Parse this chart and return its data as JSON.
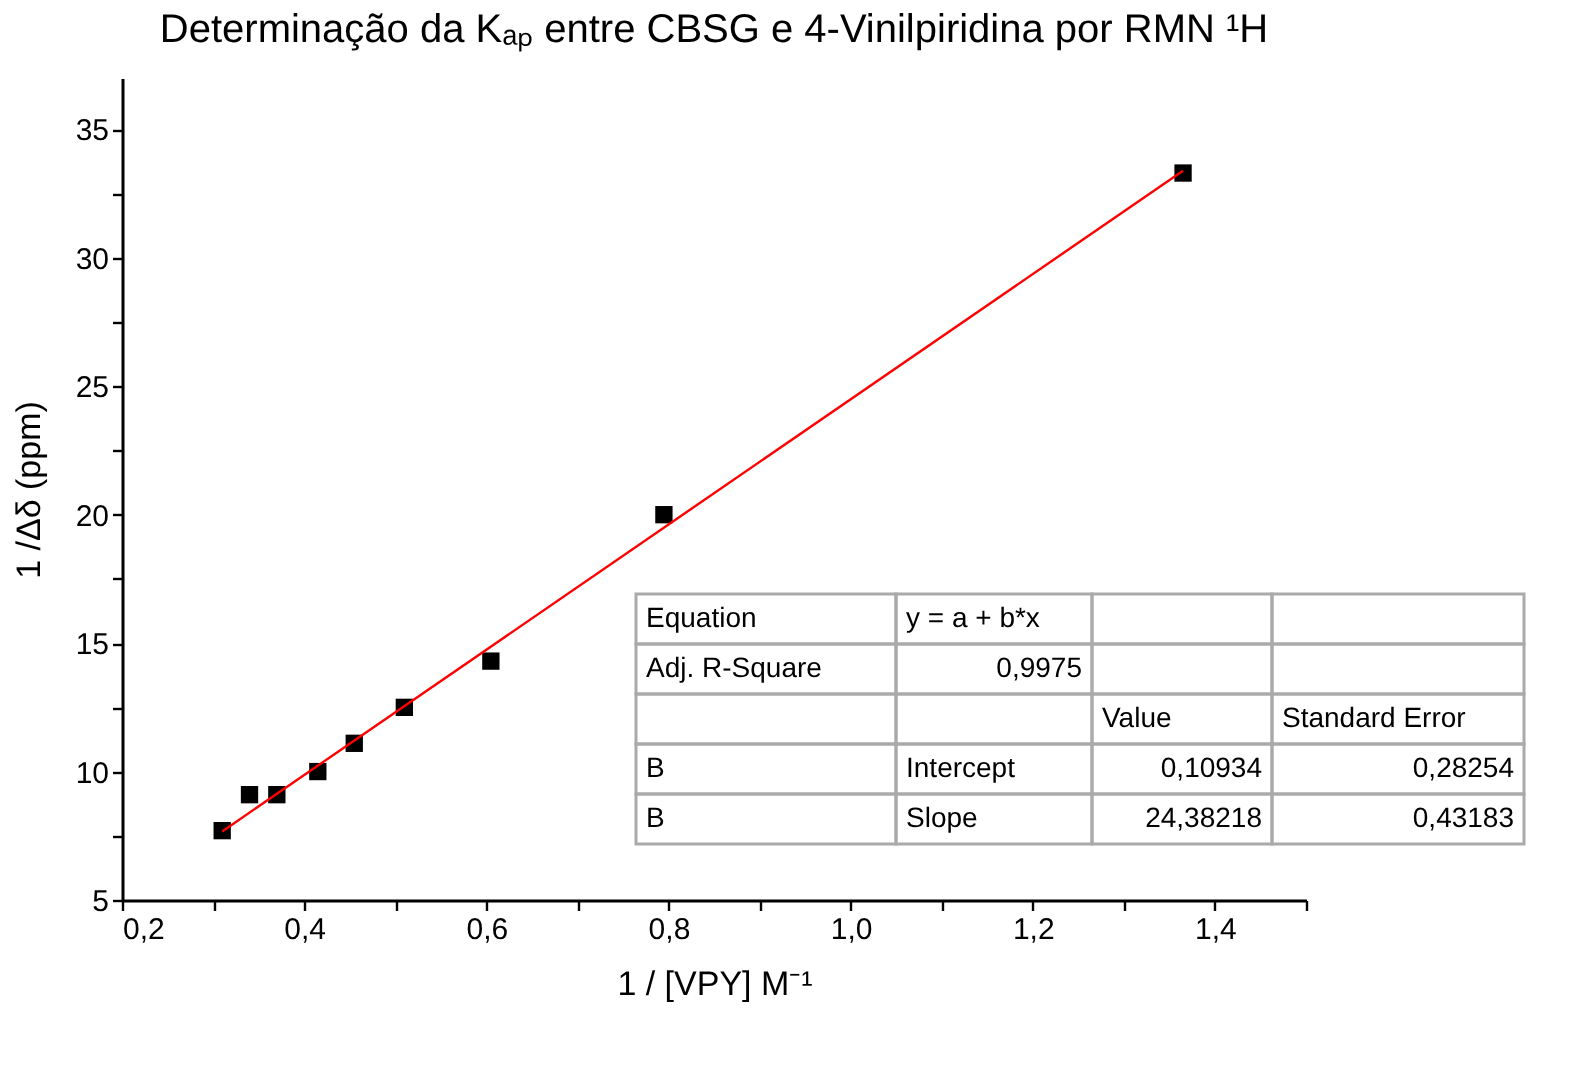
{
  "chart_data": {
    "type": "scatter",
    "title": "Determinação da Kₐₚ entre CBSG e 4-Vinilpiridina por RMN ¹H",
    "xlabel": "1 / [VPY] M⁻¹",
    "ylabel": "1 /Δδ (ppm)",
    "x": [
      0.31,
      0.34,
      0.37,
      0.415,
      0.455,
      0.51,
      0.605,
      0.795,
      1.365
    ],
    "series": [
      {
        "color": "#000000",
        "marker": "square",
        "values": [
          7.7,
          9.1,
          9.1,
          10.0,
          11.1,
          12.5,
          14.3,
          20.0,
          33.3
        ]
      },
      {
        "type": "line",
        "color": "#ff0000",
        "marker": "none",
        "line_style": "solid",
        "x": [
          0.31,
          1.365
        ],
        "values": [
          7.67,
          33.39
        ]
      }
    ],
    "xlim": [
      0.2,
      1.5
    ],
    "ylim": [
      5,
      37
    ],
    "xticks": [
      {
        "value": 0.2,
        "label": "0,2"
      },
      {
        "value": 0.3,
        "label": null
      },
      {
        "value": 0.4,
        "label": "0,4"
      },
      {
        "value": 0.5,
        "label": null
      },
      {
        "value": 0.6,
        "label": "0,6"
      },
      {
        "value": 0.7,
        "label": null
      },
      {
        "value": 0.8,
        "label": "0,8"
      },
      {
        "value": 0.9,
        "label": null
      },
      {
        "value": 1.0,
        "label": "1,0"
      },
      {
        "value": 1.1,
        "label": null
      },
      {
        "value": 1.2,
        "label": "1,2"
      },
      {
        "value": 1.3,
        "label": null
      },
      {
        "value": 1.4,
        "label": "1,4"
      },
      {
        "value": 1.5,
        "label": null
      }
    ],
    "yticks": [
      5,
      {
        "value": 7.5,
        "label": null
      },
      10,
      {
        "value": 12.5,
        "label": null
      },
      15,
      {
        "value": 17.5,
        "label": null
      },
      20,
      {
        "value": 22.5,
        "label": null
      },
      25,
      {
        "value": 27.5,
        "label": null
      },
      30,
      {
        "value": 32.5,
        "label": null
      },
      35
    ],
    "grid": false,
    "annotations": [
      "Equation",
      "y = a + b*x",
      "Adj. R-Square",
      "0,9975",
      "Value",
      "Standard Error",
      "B",
      "Intercept",
      "0,10934",
      "0,28254",
      "B",
      "Slope",
      "24,38218",
      "0,43183"
    ]
  }
}
